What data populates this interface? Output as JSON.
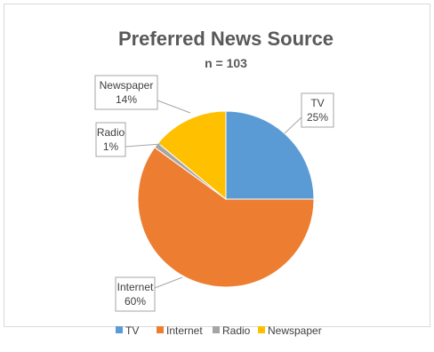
{
  "chart_data": {
    "type": "pie",
    "title": "Preferred News Source",
    "subtitle": "n = 103",
    "categories": [
      "TV",
      "Internet",
      "Radio",
      "Newspaper"
    ],
    "values": [
      25,
      60,
      1,
      14
    ],
    "value_labels": [
      "25%",
      "60%",
      "1%",
      "14%"
    ],
    "colors": [
      "#5b9bd5",
      "#ed7d31",
      "#a5a5a5",
      "#ffc000"
    ],
    "legend_position": "bottom"
  }
}
